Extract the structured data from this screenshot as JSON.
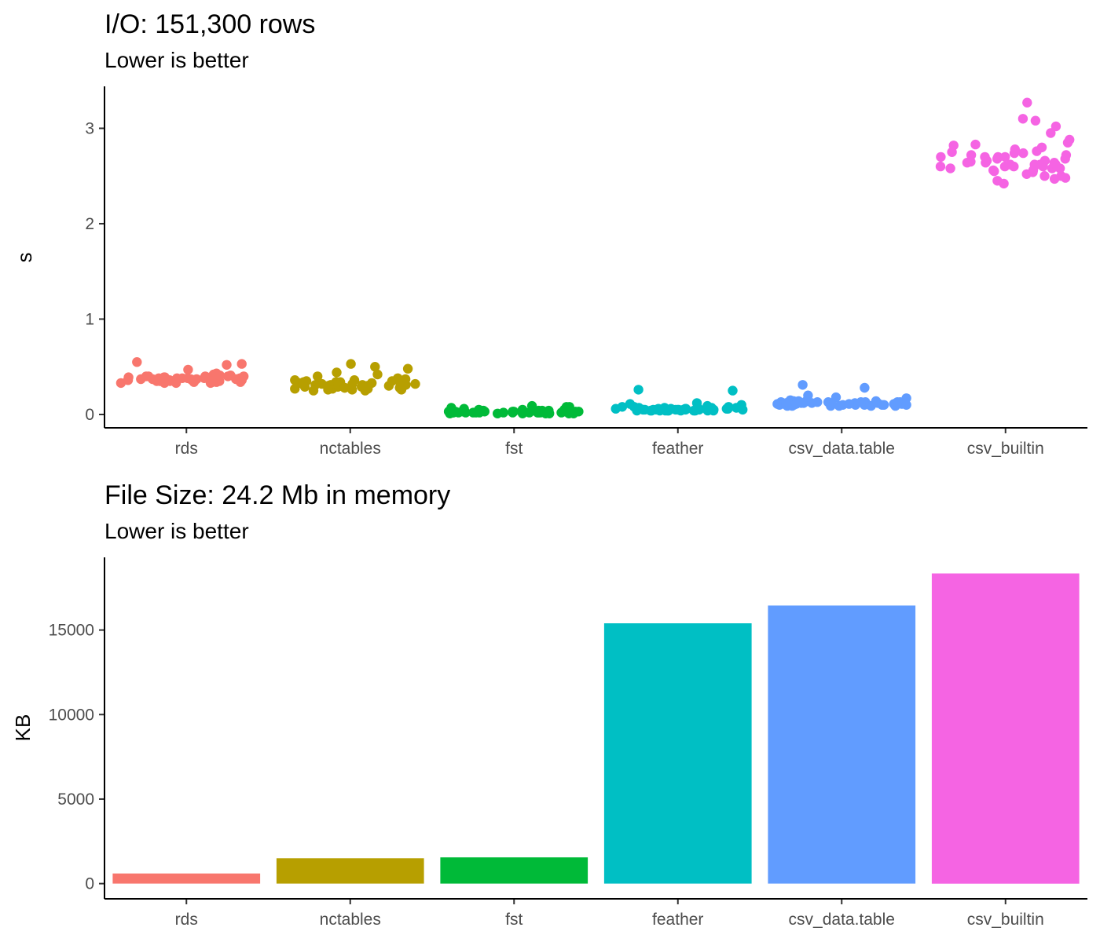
{
  "chart_data": [
    {
      "type": "scatter",
      "title": "I/O: 151,300 rows",
      "subtitle": "Lower is better",
      "xlabel": "",
      "ylabel": "s",
      "ylim": [
        -0.14,
        3.44
      ],
      "yticks": [
        0,
        1,
        2,
        3
      ],
      "categories": [
        "rds",
        "nctables",
        "fst",
        "feather",
        "csv_data.table",
        "csv_builtin"
      ],
      "colors": [
        "#F8766D",
        "#B79F00",
        "#00BA38",
        "#00BFC4",
        "#619CFF",
        "#F564E3"
      ],
      "grid": false,
      "jitter_width": 0.4,
      "series": [
        {
          "category": "rds",
          "values": [
            0.33,
            0.36,
            0.38,
            0.4,
            0.34,
            0.37,
            0.39,
            0.35,
            0.41,
            0.36,
            0.33,
            0.38,
            0.4,
            0.37,
            0.35,
            0.42,
            0.34,
            0.36,
            0.39,
            0.38,
            0.53,
            0.52,
            0.55,
            0.47,
            0.36,
            0.35,
            0.4,
            0.37,
            0.34,
            0.38,
            0.36,
            0.39,
            0.41,
            0.33,
            0.37,
            0.35,
            0.38,
            0.36,
            0.4,
            0.34,
            0.43,
            0.37,
            0.39,
            0.35,
            0.36,
            0.38,
            0.33,
            0.4,
            0.37,
            0.36
          ]
        },
        {
          "category": "nctables",
          "values": [
            0.3,
            0.28,
            0.33,
            0.31,
            0.26,
            0.35,
            0.29,
            0.32,
            0.27,
            0.34,
            0.3,
            0.36,
            0.25,
            0.31,
            0.33,
            0.28,
            0.38,
            0.3,
            0.27,
            0.32,
            0.53,
            0.5,
            0.48,
            0.44,
            0.42,
            0.4,
            0.29,
            0.31,
            0.26,
            0.34,
            0.3,
            0.28,
            0.33,
            0.35,
            0.27,
            0.31,
            0.29,
            0.36,
            0.32,
            0.25,
            0.3,
            0.34,
            0.28,
            0.31,
            0.33,
            0.37,
            0.29,
            0.26,
            0.32,
            0.3
          ]
        },
        {
          "category": "fst",
          "values": [
            0.02,
            0.03,
            0.01,
            0.04,
            0.02,
            0.03,
            0.02,
            0.05,
            0.01,
            0.03,
            0.02,
            0.04,
            0.03,
            0.02,
            0.01,
            0.03,
            0.06,
            0.02,
            0.03,
            0.04,
            0.09,
            0.08,
            0.07,
            0.08,
            0.02,
            0.03,
            0.01,
            0.02,
            0.04,
            0.03,
            0.02,
            0.05,
            0.03,
            0.01,
            0.02,
            0.04,
            0.03,
            0.02,
            0.03,
            0.01,
            0.02,
            0.04,
            0.03,
            0.02,
            0.05,
            0.02,
            0.03,
            0.01,
            0.04,
            0.02
          ]
        },
        {
          "category": "feather",
          "values": [
            0.05,
            0.04,
            0.06,
            0.07,
            0.05,
            0.04,
            0.08,
            0.05,
            0.06,
            0.04,
            0.07,
            0.05,
            0.09,
            0.04,
            0.06,
            0.05,
            0.1,
            0.05,
            0.04,
            0.06,
            0.25,
            0.26,
            0.12,
            0.11,
            0.05,
            0.06,
            0.04,
            0.07,
            0.05,
            0.04,
            0.06,
            0.08,
            0.05,
            0.04,
            0.06,
            0.05,
            0.07,
            0.04,
            0.05,
            0.06,
            0.04,
            0.05,
            0.07,
            0.06,
            0.04,
            0.05,
            0.06,
            0.04,
            0.08,
            0.05
          ]
        },
        {
          "category": "csv_data.table",
          "values": [
            0.1,
            0.12,
            0.09,
            0.13,
            0.11,
            0.1,
            0.14,
            0.12,
            0.09,
            0.11,
            0.13,
            0.1,
            0.12,
            0.15,
            0.09,
            0.11,
            0.1,
            0.13,
            0.12,
            0.14,
            0.31,
            0.28,
            0.2,
            0.18,
            0.17,
            0.11,
            0.1,
            0.12,
            0.13,
            0.09,
            0.11,
            0.14,
            0.1,
            0.12,
            0.11,
            0.13,
            0.1,
            0.09,
            0.12,
            0.11,
            0.14,
            0.1,
            0.12,
            0.13,
            0.11,
            0.09,
            0.1,
            0.12,
            0.11,
            0.13
          ]
        },
        {
          "category": "csv_builtin",
          "values": [
            2.6,
            2.7,
            2.55,
            2.75,
            2.65,
            2.5,
            2.8,
            2.62,
            2.68,
            2.58,
            2.72,
            2.66,
            2.52,
            2.78,
            2.64,
            2.56,
            2.7,
            2.6,
            2.74,
            2.62,
            3.27,
            3.1,
            3.08,
            3.02,
            2.95,
            2.88,
            2.45,
            2.42,
            2.48,
            2.85,
            2.66,
            2.58,
            2.7,
            2.62,
            2.54,
            2.76,
            2.68,
            2.6,
            2.64,
            2.72,
            2.5,
            2.82,
            2.58,
            2.66,
            2.74,
            2.56,
            2.62,
            2.7,
            2.64,
            2.6,
            2.47,
            2.83
          ]
        }
      ]
    },
    {
      "type": "bar",
      "title": "File Size: 24.2 Mb in memory",
      "subtitle": "Lower is better",
      "xlabel": "",
      "ylabel": "KB",
      "ylim": [
        -900,
        19300
      ],
      "yticks": [
        0,
        5000,
        10000,
        15000
      ],
      "categories": [
        "rds",
        "nctables",
        "fst",
        "feather",
        "csv_data.table",
        "csv_builtin"
      ],
      "values": [
        600,
        1500,
        1550,
        15400,
        16450,
        18350
      ],
      "colors": [
        "#F8766D",
        "#B79F00",
        "#00BA38",
        "#00BFC4",
        "#619CFF",
        "#F564E3"
      ],
      "grid": false
    }
  ]
}
